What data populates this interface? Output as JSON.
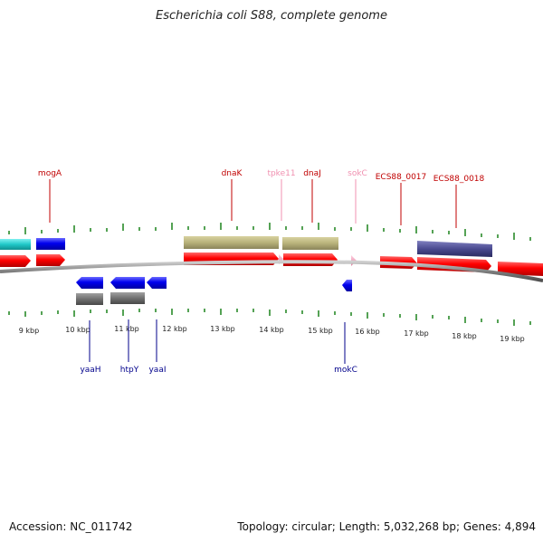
{
  "title": "Escherichia coli S88, complete genome",
  "footer": {
    "accession": "Accession: NC_011742",
    "summary": "Topology: circular; Length: 5,032,268 bp; Genes: 4,894"
  },
  "scale_labels": [
    "9 kbp",
    "10 kbp",
    "11 kbp",
    "12 kbp",
    "13 kbp",
    "14 kbp",
    "15 kbp",
    "16 kbp",
    "17 kbp",
    "18 kbp",
    "19 kbp"
  ],
  "top_labels": [
    {
      "text": "mogA",
      "color": "#c00000"
    },
    {
      "text": "dnaK",
      "color": "#c00000"
    },
    {
      "text": "tpke11",
      "color": "#f090b0"
    },
    {
      "text": "dnaJ",
      "color": "#c00000"
    },
    {
      "text": "sokC",
      "color": "#f090b0"
    },
    {
      "text": "ECS88_0017",
      "color": "#c00000"
    },
    {
      "text": "ECS88_0018",
      "color": "#c00000"
    }
  ],
  "bottom_labels": [
    {
      "text": "yaaH",
      "color": "#00008b"
    },
    {
      "text": "htpY",
      "color": "#00008b"
    },
    {
      "text": "yaaI",
      "color": "#00008b"
    },
    {
      "text": "mokC",
      "color": "#00008b"
    }
  ],
  "colors": {
    "forward_cds": "#ff0000",
    "reverse_cds": "#0000ee",
    "ncrna": "#f4a0c0",
    "gene_tan": "#b8b27a",
    "gene_gray": "#707070",
    "gene_cyan": "#20c8c8",
    "gene_purple": "#4a4a90",
    "tick": "#2a8a2a"
  }
}
